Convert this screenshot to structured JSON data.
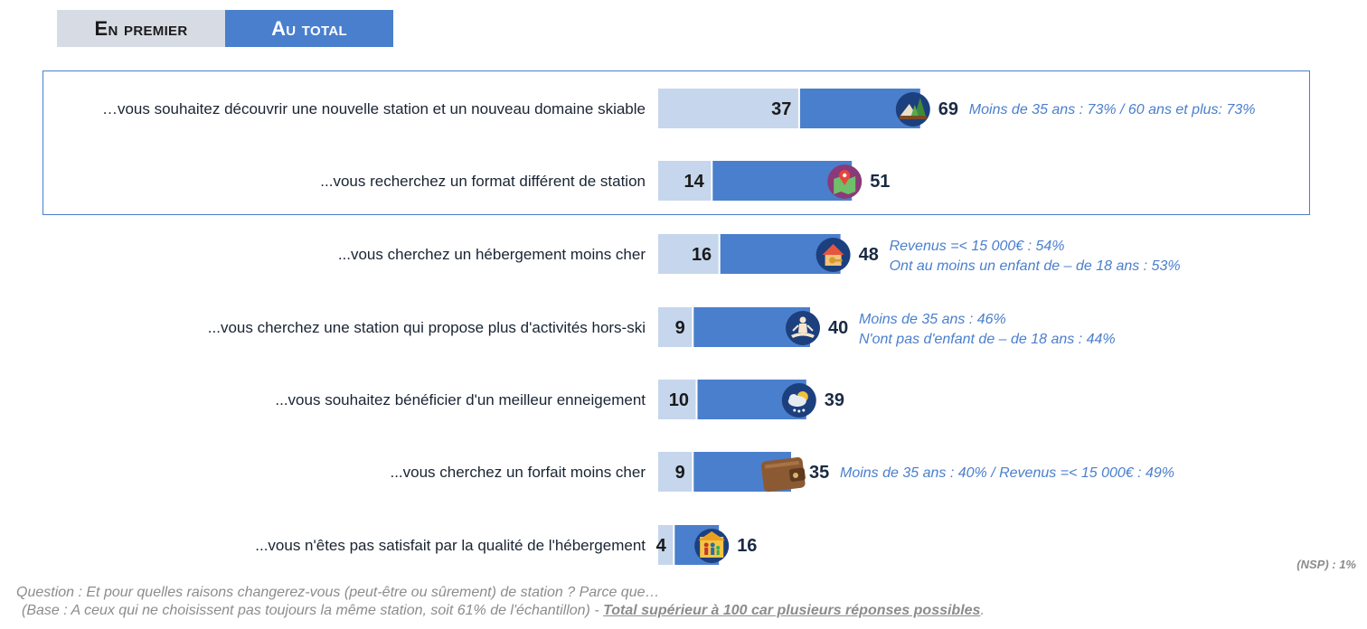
{
  "tabs": [
    {
      "label": "En premier",
      "active": false
    },
    {
      "label": "Au total",
      "active": true
    }
  ],
  "colors": {
    "first_bar": "#c6d6ec",
    "total_bar": "#4a7fcd",
    "tab_active": "#4a7fcd",
    "tab_inactive": "#d6dbe4",
    "note_text": "#4a7fcd",
    "icon_bg": "#1c3f7e"
  },
  "chart_data": {
    "type": "bar",
    "orientation": "horizontal",
    "series": [
      {
        "name": "En premier",
        "values": [
          37,
          14,
          16,
          9,
          10,
          9,
          4
        ]
      },
      {
        "name": "Au total",
        "values": [
          69,
          51,
          48,
          40,
          39,
          35,
          16
        ]
      }
    ],
    "categories": [
      "…vous souhaitez découvrir une nouvelle station et un nouveau domaine skiable",
      "...vous recherchez un format différent de station",
      "...vous cherchez un hébergement moins cher",
      "...vous cherchez une station qui propose plus d'activités hors-ski",
      "...vous souhaitez bénéficier d'un meilleur enneigement",
      "...vous cherchez un forfait moins cher",
      "...vous n'êtes pas satisfait par la qualité de l'hébergement"
    ],
    "icons": [
      "mountain-forest-icon",
      "map-pin-icon",
      "house-key-icon",
      "meditation-icon",
      "snow-weather-icon",
      "wallet-icon",
      "house-family-icon"
    ],
    "notes": [
      [
        "Moins de 35 ans : 73% / 60 ans et plus: 73%"
      ],
      [],
      [
        "Revenus =< 15 000€ : 54%",
        "Ont au moins un enfant de – de 18 ans : 53%"
      ],
      [
        "Moins de 35 ans : 46%",
        "N'ont pas d'enfant de – de 18 ans : 44%"
      ],
      [],
      [
        "Moins de 35 ans : 40% / Revenus =< 15 000€ : 49%"
      ],
      []
    ],
    "highlighted_rows": [
      0,
      1
    ]
  },
  "nsp": "(NSP) : 1%",
  "footer": {
    "question": "Question : Et pour quelles raisons changerez-vous (peut-être ou sûrement) de station ? Parce que…",
    "base": "(Base : A ceux qui ne choisissent pas toujours la même station, soit 61% de l'échantillon) - ",
    "emphasis": "Total supérieur à 100 car plusieurs réponses possibles",
    "end": "."
  }
}
